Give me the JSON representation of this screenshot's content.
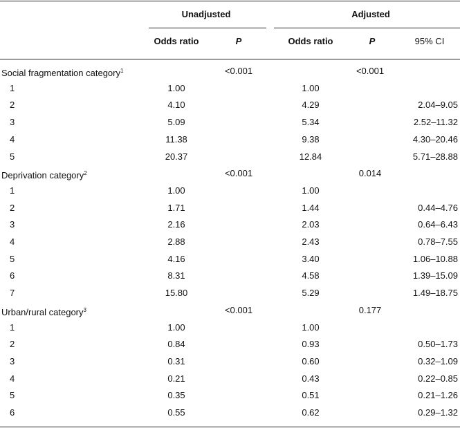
{
  "table": {
    "groups": [
      "Unadjusted",
      "Adjusted"
    ],
    "columns": [
      "Odds ratio",
      "P",
      "Odds ratio",
      "P",
      "95% CI"
    ],
    "sections": [
      {
        "label": "Social fragmentation category",
        "note": "1",
        "p_unadjusted": "<0.001",
        "p_adjusted": "<0.001",
        "rows": [
          {
            "level": "1",
            "or_unadjusted": "1.00",
            "or_adjusted": "1.00"
          },
          {
            "level": "2",
            "or_unadjusted": "4.10",
            "or_adjusted": "4.29",
            "ci": "2.04–9.05"
          },
          {
            "level": "3",
            "or_unadjusted": "5.09",
            "or_adjusted": "5.34",
            "ci": "2.52–11.32"
          },
          {
            "level": "4",
            "or_unadjusted": "11.38",
            "or_adjusted": "9.38",
            "ci": "4.30–20.46"
          },
          {
            "level": "5",
            "or_unadjusted": "20.37",
            "or_adjusted": "12.84",
            "ci": "5.71–28.88"
          }
        ]
      },
      {
        "label": "Deprivation category",
        "note": "2",
        "p_unadjusted": "<0.001",
        "p_adjusted": "0.014",
        "rows": [
          {
            "level": "1",
            "or_unadjusted": "1.00",
            "or_adjusted": "1.00"
          },
          {
            "level": "2",
            "or_unadjusted": "1.71",
            "or_adjusted": "1.44",
            "ci": "0.44–4.76"
          },
          {
            "level": "3",
            "or_unadjusted": "2.16",
            "or_adjusted": "2.03",
            "ci": "0.64–6.43"
          },
          {
            "level": "4",
            "or_unadjusted": "2.88",
            "or_adjusted": "2.43",
            "ci": "0.78–7.55"
          },
          {
            "level": "5",
            "or_unadjusted": "4.16",
            "or_adjusted": "3.40",
            "ci": "1.06–10.88"
          },
          {
            "level": "6",
            "or_unadjusted": "8.31",
            "or_adjusted": "4.58",
            "ci": "1.39–15.09"
          },
          {
            "level": "7",
            "or_unadjusted": "15.80",
            "or_adjusted": "5.29",
            "ci": "1.49–18.75"
          }
        ]
      },
      {
        "label": "Urban/rural category",
        "note": "3",
        "p_unadjusted": "<0.001",
        "p_adjusted": "0.177",
        "rows": [
          {
            "level": "1",
            "or_unadjusted": "1.00",
            "or_adjusted": "1.00"
          },
          {
            "level": "2",
            "or_unadjusted": "0.84",
            "or_adjusted": "0.93",
            "ci": "0.50–1.73"
          },
          {
            "level": "3",
            "or_unadjusted": "0.31",
            "or_adjusted": "0.60",
            "ci": "0.32–1.09"
          },
          {
            "level": "4",
            "or_unadjusted": "0.21",
            "or_adjusted": "0.43",
            "ci": "0.22–0.85"
          },
          {
            "level": "5",
            "or_unadjusted": "0.35",
            "or_adjusted": "0.51",
            "ci": "0.21–1.26"
          },
          {
            "level": "6",
            "or_unadjusted": "0.55",
            "or_adjusted": "0.62",
            "ci": "0.29–1.32"
          }
        ]
      }
    ]
  }
}
